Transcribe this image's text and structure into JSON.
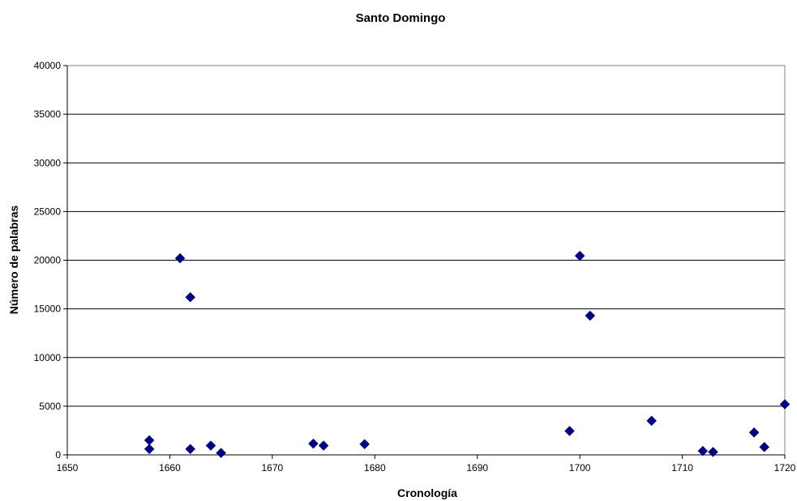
{
  "chart_data": {
    "type": "scatter",
    "title": "Santo Domingo",
    "xlabel": "Cronología",
    "ylabel": "Número de palabras",
    "xlim": [
      1650,
      1720
    ],
    "ylim": [
      0,
      40000
    ],
    "x_ticks": [
      "1650",
      "1660",
      "1670",
      "1680",
      "1690",
      "1700",
      "1710",
      "1720"
    ],
    "y_ticks": [
      "0",
      "5000",
      "10000",
      "15000",
      "20000",
      "25000",
      "30000",
      "35000",
      "40000"
    ],
    "grid": "horizontal",
    "legend": "none",
    "marker": "diamond",
    "marker_color": "#000080",
    "points": [
      {
        "x": 1658,
        "y": 1500
      },
      {
        "x": 1658,
        "y": 600
      },
      {
        "x": 1661,
        "y": 20200
      },
      {
        "x": 1662,
        "y": 16200
      },
      {
        "x": 1662,
        "y": 600
      },
      {
        "x": 1664,
        "y": 950
      },
      {
        "x": 1665,
        "y": 200
      },
      {
        "x": 1674,
        "y": 1150
      },
      {
        "x": 1675,
        "y": 950
      },
      {
        "x": 1679,
        "y": 1100
      },
      {
        "x": 1699,
        "y": 2450
      },
      {
        "x": 1700,
        "y": 20450
      },
      {
        "x": 1701,
        "y": 14300
      },
      {
        "x": 1707,
        "y": 3500
      },
      {
        "x": 1712,
        "y": 400
      },
      {
        "x": 1713,
        "y": 300
      },
      {
        "x": 1717,
        "y": 2300
      },
      {
        "x": 1718,
        "y": 800
      },
      {
        "x": 1720,
        "y": 5200
      }
    ]
  }
}
